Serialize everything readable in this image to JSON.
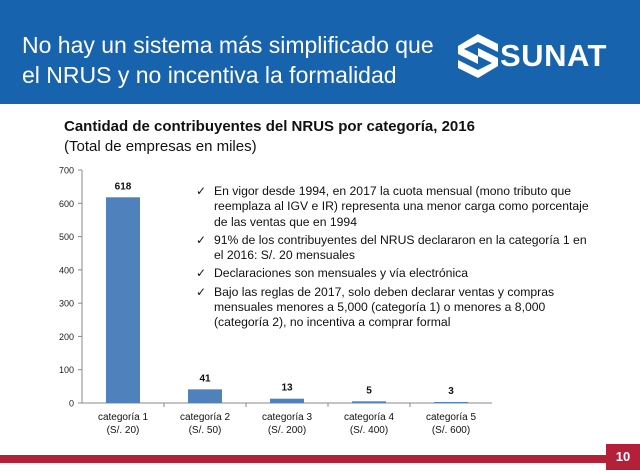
{
  "header": {
    "title_line1": "No hay un sistema más simplificado que",
    "title_line2": "el NRUS y no incentiva la formalidad",
    "logo_text": "SUNAT",
    "logo_icon": "sunat-s-logo-icon"
  },
  "colors": {
    "header_bg": "#1763ad",
    "bar": "#4f81bd",
    "footer": "#b4203a"
  },
  "chart_data": {
    "type": "bar",
    "title": "Cantidad de contribuyentes del NRUS por categoría, 2016",
    "subtitle": "(Total de empresas en miles)",
    "categories": [
      {
        "line1": "categoría 1",
        "line2": "(S/. 20)"
      },
      {
        "line1": "categoría 2",
        "line2": "(S/. 50)"
      },
      {
        "line1": "categoría 3",
        "line2": "(S/. 200)"
      },
      {
        "line1": "categoría 4",
        "line2": "(S/. 400)"
      },
      {
        "line1": "categoría 5",
        "line2": "(S/. 600)"
      }
    ],
    "values": [
      618,
      41,
      13,
      5,
      3
    ],
    "yticks": [
      0,
      100,
      200,
      300,
      400,
      500,
      600,
      700
    ],
    "ylim": [
      0,
      700
    ],
    "xlabel": "",
    "ylabel": "",
    "grid": false
  },
  "bullets": [
    "En vigor desde 1994, en 2017 la cuota mensual (mono tributo que reemplaza al IGV e IR) representa una menor carga como porcentaje de las ventas que en 1994",
    "91% de los contribuyentes del NRUS declararon en la categoría 1 en el 2016: S/. 20 mensuales",
    "Declaraciones son mensuales y vía electrónica",
    "Bajo las reglas de 2017, solo deben declarar ventas y compras mensuales menores a 5,000 (categoría 1) o menores a 8,000 (categoría 2), no incentiva a comprar formal"
  ],
  "footer": {
    "page_number": "10"
  }
}
